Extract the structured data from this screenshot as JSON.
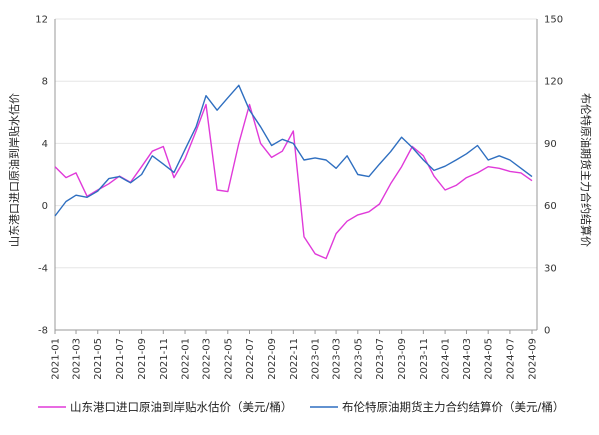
{
  "chart_data": {
    "type": "line",
    "ylabel_left": "山东港口进口原油到岸贴水估价",
    "ylabel_right": "布伦特原油期货主力合约结算价",
    "ylim_left": [
      -8,
      12
    ],
    "ylim_right": [
      0,
      150
    ],
    "yticks_left": [
      "-8",
      "-4",
      "0",
      "4",
      "8",
      "12"
    ],
    "yticks_right": [
      "0",
      "30",
      "60",
      "90",
      "120",
      "150"
    ],
    "grid": "horizontal",
    "legend_position": "bottom",
    "x_tick_labels": [
      "2021-01",
      "2021-03",
      "2021-05",
      "2021-07",
      "2021-09",
      "2021-11",
      "2022-01",
      "2022-03",
      "2022-05",
      "2022-07",
      "2022-09",
      "2022-11",
      "2023-01",
      "2023-03",
      "2023-05",
      "2023-07",
      "2023-09",
      "2023-11",
      "2024-01",
      "2024-03",
      "2024-05",
      "2024-07",
      "2024-09"
    ],
    "x": [
      "2021-01",
      "2021-02",
      "2021-03",
      "2021-04",
      "2021-05",
      "2021-06",
      "2021-07",
      "2021-08",
      "2021-09",
      "2021-10",
      "2021-11",
      "2021-12",
      "2022-01",
      "2022-02",
      "2022-03",
      "2022-04",
      "2022-05",
      "2022-06",
      "2022-07",
      "2022-08",
      "2022-09",
      "2022-10",
      "2022-11",
      "2022-12",
      "2023-01",
      "2023-02",
      "2023-03",
      "2023-04",
      "2023-05",
      "2023-06",
      "2023-07",
      "2023-08",
      "2023-09",
      "2023-10",
      "2023-11",
      "2023-12",
      "2024-01",
      "2024-02",
      "2024-03",
      "2024-04",
      "2024-05",
      "2024-06",
      "2024-07",
      "2024-08",
      "2024-09"
    ],
    "series": [
      {
        "name": "山东港口进口原油到岸贴水估价（美元/桶）",
        "color": "#e03ad9",
        "axis": "left",
        "values": [
          2.5,
          1.8,
          2.1,
          0.6,
          1.0,
          1.4,
          1.9,
          1.5,
          2.5,
          3.5,
          3.8,
          1.8,
          3.0,
          4.8,
          6.5,
          1.0,
          0.9,
          4.0,
          6.5,
          4.0,
          3.1,
          3.5,
          4.8,
          -2.0,
          -3.1,
          -3.4,
          -1.8,
          -1.0,
          -0.6,
          -0.4,
          0.1,
          1.4,
          2.5,
          3.8,
          3.2,
          1.9,
          1.0,
          1.3,
          1.8,
          2.1,
          2.5,
          2.4,
          2.2,
          2.1,
          1.6
        ]
      },
      {
        "name": "布伦特原油期货主力合约结算价（美元/桶）",
        "color": "#2f6fc0",
        "axis": "right",
        "values": [
          55,
          62,
          65,
          64,
          67,
          73,
          74,
          71,
          75,
          84,
          80,
          76,
          87,
          98,
          113,
          106,
          112,
          118,
          106,
          98,
          89,
          92,
          90,
          82,
          83,
          82,
          78,
          84,
          75,
          74,
          80,
          86,
          93,
          88,
          82,
          77,
          79,
          82,
          85,
          89,
          82,
          84,
          82,
          78,
          74
        ]
      }
    ]
  }
}
